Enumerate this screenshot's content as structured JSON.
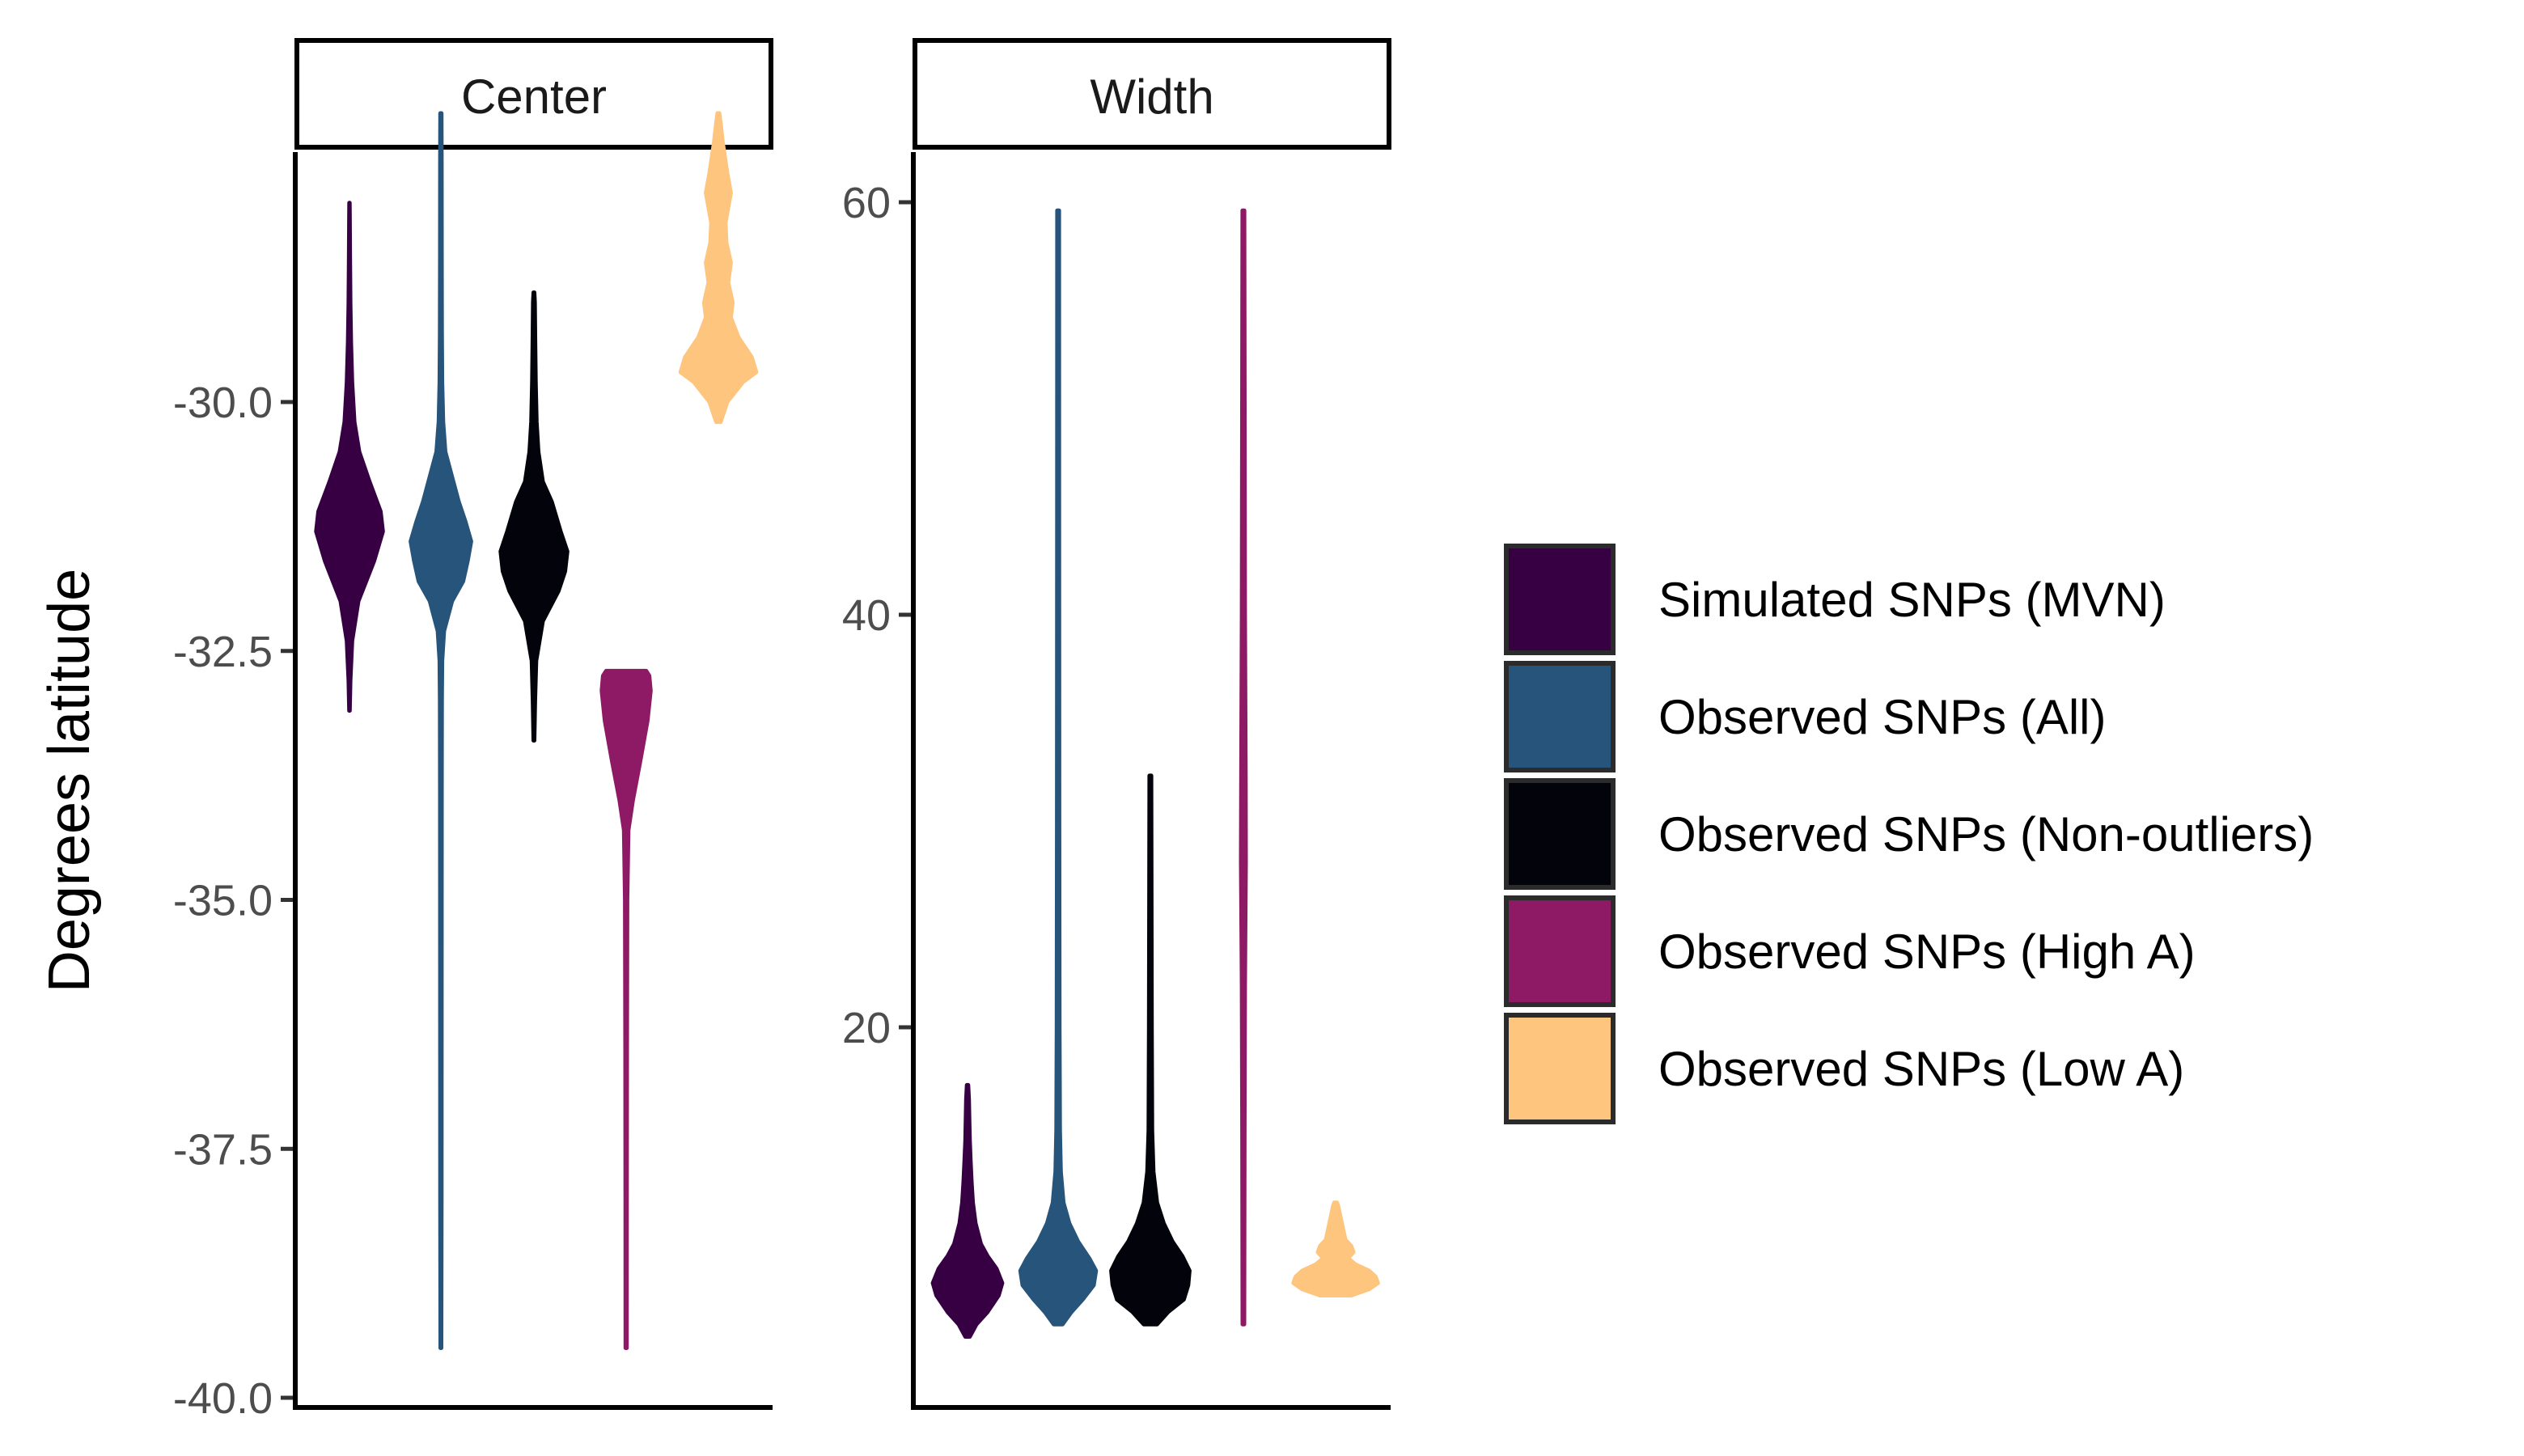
{
  "chart_data": {
    "type": "violin",
    "ylabel": "Degrees latitude",
    "legend_position": "right",
    "series": [
      {
        "name": "Simulated SNPs (MVN)",
        "color": "#360043"
      },
      {
        "name": "Observed SNPs (All)",
        "color": "#26547A"
      },
      {
        "name": "Observed SNPs (Non-outliers)",
        "color": "#03030B"
      },
      {
        "name": "Observed SNPs (High A)",
        "color": "#8E1A66"
      },
      {
        "name": "Observed SNPs (Low A)",
        "color": "#FDC57E"
      }
    ],
    "panels": [
      {
        "strip": "Center",
        "ylim": [
          -40.0,
          -27.5
        ],
        "yticks": [
          -30.0,
          -32.5,
          -35.0,
          -37.5,
          -40.0
        ],
        "ytick_labels": [
          "-30.0",
          "-32.5",
          "-35.0",
          "-37.5",
          "-40.0"
        ],
        "violins": [
          {
            "series": "Simulated SNPs (MVN)",
            "min": -33.1,
            "max": -28.0,
            "profile": [
              [
                -33.1,
                0.005
              ],
              [
                -32.8,
                0.02
              ],
              [
                -32.4,
                0.06
              ],
              [
                -32.0,
                0.2
              ],
              [
                -31.6,
                0.55
              ],
              [
                -31.3,
                0.75
              ],
              [
                -31.1,
                0.7
              ],
              [
                -30.8,
                0.45
              ],
              [
                -30.5,
                0.22
              ],
              [
                -30.2,
                0.11
              ],
              [
                -29.8,
                0.06
              ],
              [
                -29.4,
                0.035
              ],
              [
                -29.0,
                0.02
              ],
              [
                -28.6,
                0.012
              ],
              [
                -28.2,
                0.007
              ],
              [
                -28.0,
                0.004
              ]
            ]
          },
          {
            "series": "Observed SNPs (All)",
            "min": -39.5,
            "max": -27.1,
            "profile": [
              [
                -39.5,
                0.01
              ],
              [
                -38.0,
                0.015
              ],
              [
                -36.0,
                0.017
              ],
              [
                -34.0,
                0.018
              ],
              [
                -33.0,
                0.022
              ],
              [
                -32.6,
                0.03
              ],
              [
                -32.3,
                0.07
              ],
              [
                -32.0,
                0.25
              ],
              [
                -31.8,
                0.5
              ],
              [
                -31.6,
                0.6
              ],
              [
                -31.4,
                0.68
              ],
              [
                -31.2,
                0.55
              ],
              [
                -31.0,
                0.4
              ],
              [
                -30.7,
                0.22
              ],
              [
                -30.5,
                0.1
              ],
              [
                -30.2,
                0.05
              ],
              [
                -29.8,
                0.03
              ],
              [
                -29.3,
                0.022
              ],
              [
                -28.5,
                0.018
              ],
              [
                -27.6,
                0.016
              ],
              [
                -27.1,
                0.012
              ]
            ]
          },
          {
            "series": "Observed SNPs (Non-outliers)",
            "min": -33.4,
            "max": -28.9,
            "profile": [
              [
                -33.4,
                0.01
              ],
              [
                -33.0,
                0.025
              ],
              [
                -32.6,
                0.05
              ],
              [
                -32.2,
                0.2
              ],
              [
                -31.9,
                0.55
              ],
              [
                -31.7,
                0.7
              ],
              [
                -31.5,
                0.75
              ],
              [
                -31.3,
                0.6
              ],
              [
                -31.0,
                0.4
              ],
              [
                -30.8,
                0.2
              ],
              [
                -30.5,
                0.1
              ],
              [
                -30.2,
                0.06
              ],
              [
                -29.8,
                0.04
              ],
              [
                -29.4,
                0.03
              ],
              [
                -29.0,
                0.02
              ],
              [
                -28.9,
                0.01
              ]
            ]
          },
          {
            "series": "Observed SNPs (High A)",
            "min": -39.5,
            "max": -32.7,
            "profile": [
              [
                -39.5,
                0.012
              ],
              [
                -38.0,
                0.015
              ],
              [
                -36.5,
                0.018
              ],
              [
                -35.0,
                0.025
              ],
              [
                -34.3,
                0.05
              ],
              [
                -34.0,
                0.15
              ],
              [
                -33.6,
                0.32
              ],
              [
                -33.2,
                0.48
              ],
              [
                -32.9,
                0.55
              ],
              [
                -32.75,
                0.52
              ],
              [
                -32.7,
                0.45
              ]
            ]
          },
          {
            "series": "Observed SNPs (Low A)",
            "min": -30.2,
            "max": -27.1,
            "profile": [
              [
                -30.2,
                0.05
              ],
              [
                -30.0,
                0.2
              ],
              [
                -29.8,
                0.55
              ],
              [
                -29.7,
                0.85
              ],
              [
                -29.55,
                0.75
              ],
              [
                -29.35,
                0.45
              ],
              [
                -29.15,
                0.28
              ],
              [
                -29.0,
                0.32
              ],
              [
                -28.8,
                0.22
              ],
              [
                -28.6,
                0.28
              ],
              [
                -28.4,
                0.18
              ],
              [
                -28.2,
                0.16
              ],
              [
                -27.9,
                0.28
              ],
              [
                -27.7,
                0.2
              ],
              [
                -27.4,
                0.1
              ],
              [
                -27.2,
                0.05
              ],
              [
                -27.1,
                0.02
              ]
            ]
          }
        ]
      },
      {
        "strip": "Width",
        "ylim": [
          5,
          65
        ],
        "yticks": [
          20,
          40,
          60
        ],
        "ytick_labels": [
          "20",
          "40",
          "60"
        ],
        "violins": [
          {
            "series": "Simulated SNPs (MVN)",
            "min": 5.0,
            "max": 17.2,
            "profile": [
              [
                5.0,
                0.05
              ],
              [
                5.6,
                0.2
              ],
              [
                6.2,
                0.45
              ],
              [
                7.0,
                0.7
              ],
              [
                7.6,
                0.78
              ],
              [
                8.3,
                0.65
              ],
              [
                8.9,
                0.45
              ],
              [
                9.5,
                0.3
              ],
              [
                10.5,
                0.18
              ],
              [
                11.5,
                0.12
              ],
              [
                12.5,
                0.09
              ],
              [
                13.5,
                0.07
              ],
              [
                14.5,
                0.05
              ],
              [
                15.5,
                0.04
              ],
              [
                16.5,
                0.03
              ],
              [
                17.2,
                0.015
              ]
            ]
          },
          {
            "series": "Observed SNPs (All)",
            "min": 5.6,
            "max": 59.6,
            "profile": [
              [
                5.6,
                0.1
              ],
              [
                6.2,
                0.3
              ],
              [
                6.8,
                0.55
              ],
              [
                7.5,
                0.8
              ],
              [
                8.2,
                0.85
              ],
              [
                8.8,
                0.7
              ],
              [
                9.6,
                0.45
              ],
              [
                10.5,
                0.25
              ],
              [
                11.5,
                0.12
              ],
              [
                13.0,
                0.06
              ],
              [
                15.0,
                0.04
              ],
              [
                20.0,
                0.03
              ],
              [
                30.0,
                0.025
              ],
              [
                45.0,
                0.022
              ],
              [
                59.6,
                0.02
              ]
            ]
          },
          {
            "series": "Observed SNPs (Non-outliers)",
            "min": 5.6,
            "max": 32.2,
            "profile": [
              [
                5.6,
                0.15
              ],
              [
                6.2,
                0.4
              ],
              [
                6.8,
                0.75
              ],
              [
                7.5,
                0.85
              ],
              [
                8.2,
                0.88
              ],
              [
                8.9,
                0.72
              ],
              [
                9.6,
                0.5
              ],
              [
                10.5,
                0.3
              ],
              [
                11.5,
                0.15
              ],
              [
                13.0,
                0.07
              ],
              [
                15.0,
                0.04
              ],
              [
                20.0,
                0.03
              ],
              [
                26.0,
                0.025
              ],
              [
                32.2,
                0.02
              ]
            ]
          },
          {
            "series": "Observed SNPs (High A)",
            "min": 5.6,
            "max": 59.6,
            "profile": [
              [
                5.6,
                0.018
              ],
              [
                15.0,
                0.025
              ],
              [
                22.0,
                0.035
              ],
              [
                28.0,
                0.055
              ],
              [
                32.0,
                0.05
              ],
              [
                40.0,
                0.035
              ],
              [
                50.0,
                0.028
              ],
              [
                59.6,
                0.02
              ]
            ]
          },
          {
            "series": "Observed SNPs (Low A)",
            "min": 7.0,
            "max": 11.5,
            "profile": [
              [
                7.0,
                0.35
              ],
              [
                7.3,
                0.75
              ],
              [
                7.6,
                0.95
              ],
              [
                7.9,
                0.9
              ],
              [
                8.2,
                0.75
              ],
              [
                8.5,
                0.45
              ],
              [
                8.8,
                0.28
              ],
              [
                9.1,
                0.4
              ],
              [
                9.4,
                0.35
              ],
              [
                9.7,
                0.22
              ],
              [
                10.1,
                0.18
              ],
              [
                10.5,
                0.14
              ],
              [
                10.9,
                0.1
              ],
              [
                11.3,
                0.06
              ],
              [
                11.5,
                0.03
              ]
            ]
          }
        ]
      }
    ]
  }
}
